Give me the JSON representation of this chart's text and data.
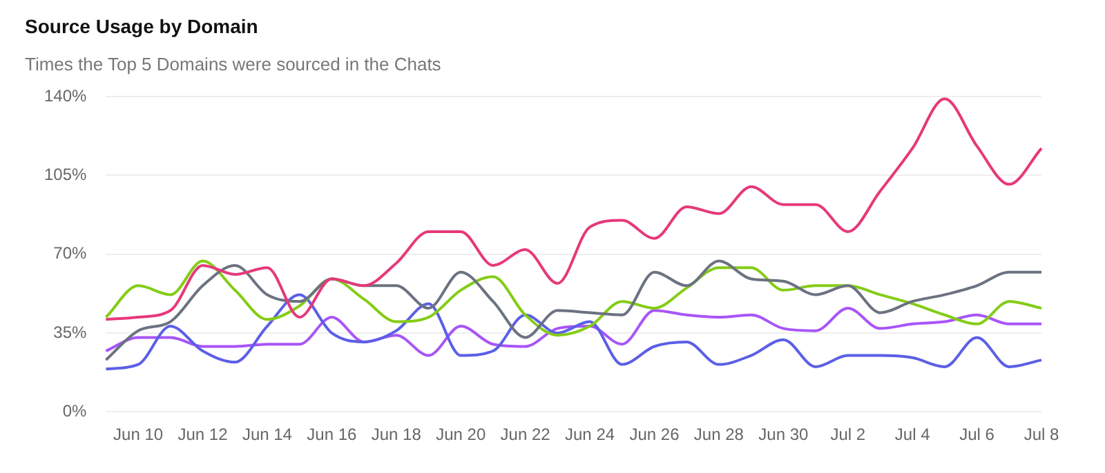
{
  "chart_data": {
    "type": "line",
    "title": "Source Usage by Domain",
    "subtitle": "Times the Top 5 Domains were sourced in the Chats",
    "categories": [
      null,
      "Jun 10",
      null,
      "Jun 12",
      null,
      "Jun 14",
      null,
      "Jun 16",
      null,
      "Jun 18",
      null,
      "Jun 20",
      null,
      "Jun 22",
      null,
      "Jun 24",
      null,
      "Jun 26",
      null,
      "Jun 28",
      null,
      "Jun 30",
      null,
      "Jul 2",
      null,
      "Jul 4",
      null,
      "Jul 6",
      null,
      "Jul 8"
    ],
    "series": [
      {
        "color": "#e6397a",
        "values": [
          41,
          42,
          45,
          65,
          61,
          64,
          42,
          59,
          56,
          66,
          80,
          80,
          65,
          72,
          57,
          82,
          85,
          77,
          91,
          88,
          100,
          92,
          92,
          80,
          98,
          117,
          139,
          118,
          101,
          117
        ]
      },
      {
        "color": "#6b7280",
        "values": [
          23,
          36,
          40,
          56,
          65,
          52,
          49,
          59,
          56,
          56,
          46,
          62,
          49,
          33,
          45,
          44,
          43,
          62,
          56,
          67,
          59,
          58,
          52,
          56,
          44,
          49,
          52,
          56,
          62,
          62
        ]
      },
      {
        "color": "#84cc16",
        "values": [
          42,
          56,
          52,
          67,
          54,
          41,
          47,
          59,
          50,
          40,
          42,
          54,
          60,
          43,
          34,
          38,
          49,
          46,
          55,
          64,
          64,
          54,
          56,
          56,
          52,
          48,
          43,
          39,
          49,
          46
        ]
      },
      {
        "color": "#5b5fe6",
        "values": [
          19,
          21,
          38,
          27,
          22,
          38,
          52,
          35,
          31,
          36,
          48,
          25,
          27,
          43,
          35,
          40,
          21,
          29,
          31,
          21,
          25,
          32,
          20,
          25,
          25,
          24,
          20,
          33,
          20,
          23
        ]
      },
      {
        "color": "#a855f7",
        "values": [
          27,
          33,
          33,
          29,
          29,
          30,
          30,
          42,
          31,
          34,
          25,
          38,
          30,
          29,
          37,
          38,
          30,
          45,
          43,
          42,
          43,
          37,
          36,
          46,
          37,
          39,
          40,
          43,
          39,
          39
        ]
      }
    ],
    "ylim": [
      0,
      140
    ],
    "yticks": [
      {
        "value": 0,
        "label": "0%"
      },
      {
        "value": 35,
        "label": "35%"
      },
      {
        "value": 70,
        "label": "70%"
      },
      {
        "value": 105,
        "label": "105%"
      },
      {
        "value": 140,
        "label": "140%"
      }
    ],
    "grid": "y",
    "legend": false,
    "marker": "none",
    "line_style": "solid"
  }
}
